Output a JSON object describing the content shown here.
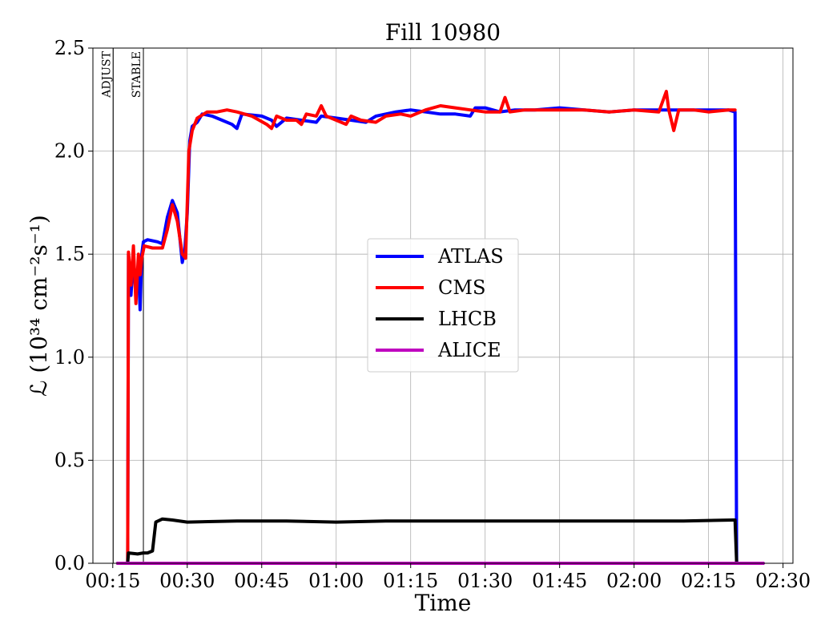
{
  "chart_data": {
    "type": "line",
    "title": "Fill 10980",
    "xlabel": "Time",
    "ylabel": "ℒ (10³⁴ cm⁻²s⁻¹)",
    "x_unit": "HH:MM",
    "xlim": [
      "00:11",
      "02:32"
    ],
    "ylim": [
      0,
      2.5
    ],
    "x_ticks": [
      "00:15",
      "00:30",
      "00:45",
      "01:00",
      "01:15",
      "01:30",
      "01:45",
      "02:00",
      "02:15",
      "02:30"
    ],
    "y_ticks": [
      "0.0",
      "0.5",
      "1.0",
      "1.5",
      "2.0",
      "2.5"
    ],
    "grid": true,
    "legend_position": "center",
    "markers": [
      {
        "label": "ADJUST",
        "x": "00:15:05"
      },
      {
        "label": "STABLE",
        "x": "00:21:10"
      }
    ],
    "series": [
      {
        "name": "ATLAS",
        "color": "#0000ff",
        "points": [
          [
            "00:16",
            "0"
          ],
          [
            "00:18",
            "0"
          ],
          [
            "00:18:10",
            "1.50"
          ],
          [
            "00:18:40",
            "1.30"
          ],
          [
            "00:19:10",
            "1.48"
          ],
          [
            "00:19:40",
            "1.32"
          ],
          [
            "00:20:10",
            "1.45"
          ],
          [
            "00:20:30",
            "1.23"
          ],
          [
            "00:20:50",
            "1.50"
          ],
          [
            "00:21:10",
            "1.56"
          ],
          [
            "00:22",
            "1.57"
          ],
          [
            "00:24",
            "1.56"
          ],
          [
            "00:25",
            "1.55"
          ],
          [
            "00:26",
            "1.68"
          ],
          [
            "00:27",
            "1.76"
          ],
          [
            "00:28",
            "1.70"
          ],
          [
            "00:29",
            "1.46"
          ],
          [
            "00:29:30",
            "1.52"
          ],
          [
            "00:30",
            "1.70"
          ],
          [
            "00:30:30",
            "2.05"
          ],
          [
            "00:31",
            "2.12"
          ],
          [
            "00:32",
            "2.14"
          ],
          [
            "00:33",
            "2.18"
          ],
          [
            "00:35",
            "2.17"
          ],
          [
            "00:37",
            "2.15"
          ],
          [
            "00:39",
            "2.13"
          ],
          [
            "00:40",
            "2.11"
          ],
          [
            "00:41",
            "2.18"
          ],
          [
            "00:45",
            "2.17"
          ],
          [
            "00:47",
            "2.15"
          ],
          [
            "00:48",
            "2.12"
          ],
          [
            "00:50",
            "2.16"
          ],
          [
            "00:53",
            "2.15"
          ],
          [
            "00:56",
            "2.14"
          ],
          [
            "00:57",
            "2.17"
          ],
          [
            "01:00",
            "2.16"
          ],
          [
            "01:03",
            "2.15"
          ],
          [
            "01:06",
            "2.14"
          ],
          [
            "01:08",
            "2.17"
          ],
          [
            "01:10",
            "2.18"
          ],
          [
            "01:12",
            "2.19"
          ],
          [
            "01:15",
            "2.20"
          ],
          [
            "01:18",
            "2.19"
          ],
          [
            "01:21",
            "2.18"
          ],
          [
            "01:24",
            "2.18"
          ],
          [
            "01:27",
            "2.17"
          ],
          [
            "01:28",
            "2.21"
          ],
          [
            "01:30",
            "2.21"
          ],
          [
            "01:33",
            "2.19"
          ],
          [
            "01:36",
            "2.20"
          ],
          [
            "01:40",
            "2.20"
          ],
          [
            "01:45",
            "2.21"
          ],
          [
            "01:50",
            "2.20"
          ],
          [
            "01:55",
            "2.19"
          ],
          [
            "02:00",
            "2.20"
          ],
          [
            "02:05",
            "2.20"
          ],
          [
            "02:10",
            "2.20"
          ],
          [
            "02:15",
            "2.20"
          ],
          [
            "02:19",
            "2.20"
          ],
          [
            "02:20:20",
            "2.19"
          ],
          [
            "02:20:40",
            "0"
          ],
          [
            "02:26",
            "0"
          ]
        ]
      },
      {
        "name": "CMS",
        "color": "#ff0000",
        "points": [
          [
            "00:16",
            "0"
          ],
          [
            "00:18",
            "0"
          ],
          [
            "00:18:10",
            "1.51"
          ],
          [
            "00:18:40",
            "1.35"
          ],
          [
            "00:19:10",
            "1.54"
          ],
          [
            "00:19:40",
            "1.26"
          ],
          [
            "00:20:10",
            "1.50"
          ],
          [
            "00:20:30",
            "1.40"
          ],
          [
            "00:20:50",
            "1.48"
          ],
          [
            "00:21:20",
            "1.54"
          ],
          [
            "00:23",
            "1.53"
          ],
          [
            "00:25",
            "1.53"
          ],
          [
            "00:26",
            "1.62"
          ],
          [
            "00:27",
            "1.74"
          ],
          [
            "00:28",
            "1.66"
          ],
          [
            "00:29",
            "1.50"
          ],
          [
            "00:29:40",
            "1.48"
          ],
          [
            "00:30:20",
            "2.00"
          ],
          [
            "00:31",
            "2.10"
          ],
          [
            "00:32",
            "2.16"
          ],
          [
            "00:34",
            "2.19"
          ],
          [
            "00:36",
            "2.19"
          ],
          [
            "00:38",
            "2.20"
          ],
          [
            "00:40",
            "2.19"
          ],
          [
            "00:43",
            "2.17"
          ],
          [
            "00:46",
            "2.13"
          ],
          [
            "00:47",
            "2.11"
          ],
          [
            "00:48",
            "2.17"
          ],
          [
            "00:50",
            "2.15"
          ],
          [
            "00:52",
            "2.15"
          ],
          [
            "00:53",
            "2.13"
          ],
          [
            "00:54",
            "2.18"
          ],
          [
            "00:56",
            "2.17"
          ],
          [
            "00:57",
            "2.22"
          ],
          [
            "00:58",
            "2.17"
          ],
          [
            "01:00",
            "2.15"
          ],
          [
            "01:02",
            "2.13"
          ],
          [
            "01:03",
            "2.17"
          ],
          [
            "01:05",
            "2.15"
          ],
          [
            "01:08",
            "2.14"
          ],
          [
            "01:10",
            "2.17"
          ],
          [
            "01:13",
            "2.18"
          ],
          [
            "01:15",
            "2.17"
          ],
          [
            "01:18",
            "2.20"
          ],
          [
            "01:21",
            "2.22"
          ],
          [
            "01:24",
            "2.21"
          ],
          [
            "01:27",
            "2.20"
          ],
          [
            "01:30",
            "2.19"
          ],
          [
            "01:33",
            "2.19"
          ],
          [
            "01:34",
            "2.26"
          ],
          [
            "01:35",
            "2.19"
          ],
          [
            "01:38",
            "2.20"
          ],
          [
            "01:42",
            "2.20"
          ],
          [
            "01:45",
            "2.20"
          ],
          [
            "01:50",
            "2.20"
          ],
          [
            "01:55",
            "2.19"
          ],
          [
            "02:00",
            "2.20"
          ],
          [
            "02:05",
            "2.19"
          ],
          [
            "02:06:30",
            "2.29"
          ],
          [
            "02:07",
            "2.20"
          ],
          [
            "02:08",
            "2.10"
          ],
          [
            "02:09",
            "2.20"
          ],
          [
            "02:12",
            "2.20"
          ],
          [
            "02:15",
            "2.19"
          ],
          [
            "02:19",
            "2.20"
          ],
          [
            "02:20:20",
            "2.20"
          ]
        ]
      },
      {
        "name": "LHCB",
        "color": "#000000",
        "points": [
          [
            "00:16",
            "0"
          ],
          [
            "00:18",
            "0"
          ],
          [
            "00:18:10",
            "0.05"
          ],
          [
            "00:20",
            "0.045"
          ],
          [
            "00:21:10",
            "0.05"
          ],
          [
            "00:22",
            "0.05"
          ],
          [
            "00:23",
            "0.06"
          ],
          [
            "00:23:40",
            "0.20"
          ],
          [
            "00:25",
            "0.215"
          ],
          [
            "00:27",
            "0.21"
          ],
          [
            "00:30",
            "0.20"
          ],
          [
            "00:40",
            "0.205"
          ],
          [
            "00:50",
            "0.205"
          ],
          [
            "01:00",
            "0.20"
          ],
          [
            "01:10",
            "0.205"
          ],
          [
            "01:20",
            "0.205"
          ],
          [
            "01:30",
            "0.205"
          ],
          [
            "01:40",
            "0.205"
          ],
          [
            "01:50",
            "0.205"
          ],
          [
            "02:00",
            "0.205"
          ],
          [
            "02:10",
            "0.205"
          ],
          [
            "02:20",
            "0.21"
          ],
          [
            "02:20:20",
            "0.21"
          ],
          [
            "02:20:40",
            "0"
          ],
          [
            "02:26",
            "0"
          ]
        ]
      },
      {
        "name": "ALICE",
        "color": "#bf00bf",
        "points": [
          [
            "00:16",
            "0"
          ],
          [
            "02:26",
            "0"
          ]
        ]
      }
    ]
  }
}
